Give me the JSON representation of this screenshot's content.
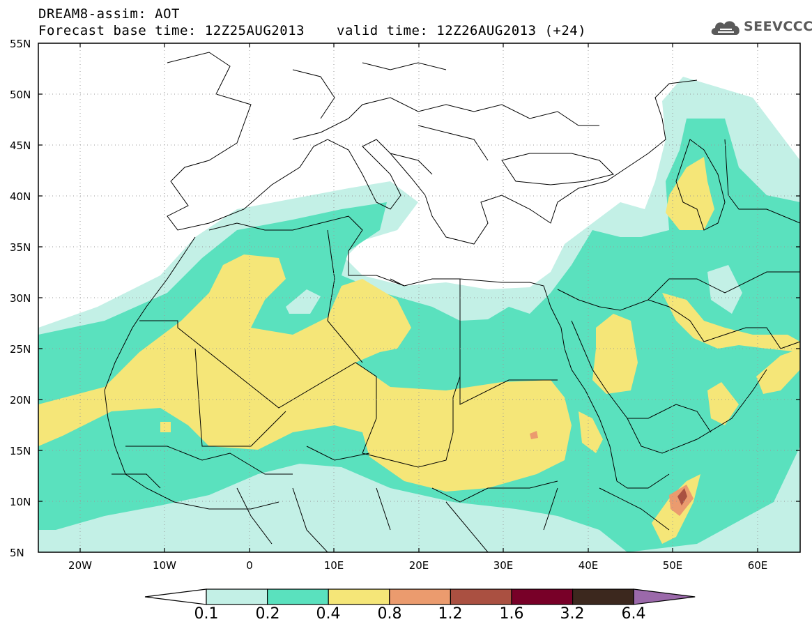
{
  "header": {
    "line1": "DREAM8-assim: AOT",
    "base_time": "Forecast base time: 12Z25AUG2013",
    "valid_time": "valid time: 12Z26AUG2013 (+24)"
  },
  "logo": {
    "text": "SEEVCCC",
    "icon": "cloud-icon"
  },
  "map": {
    "extent": {
      "lon_min": -25,
      "lon_max": 65,
      "lat_min": 5,
      "lat_max": 55
    },
    "lat_labels": [
      "55N",
      "50N",
      "45N",
      "40N",
      "35N",
      "30N",
      "25N",
      "20N",
      "15N",
      "10N",
      "5N"
    ],
    "lon_labels": [
      "20W",
      "10W",
      "0",
      "10E",
      "20E",
      "30E",
      "40E",
      "50E",
      "60E"
    ]
  },
  "colorbar": {
    "labels": [
      "0.1",
      "0.2",
      "0.4",
      "0.8",
      "1.2",
      "1.6",
      "3.2",
      "6.4"
    ],
    "colors": [
      "#ffffff",
      "#c3f0e6",
      "#5ae1be",
      "#f5e678",
      "#eb9b6e",
      "#aa5041",
      "#780028",
      "#3c281e",
      "#9b69aa"
    ]
  }
}
